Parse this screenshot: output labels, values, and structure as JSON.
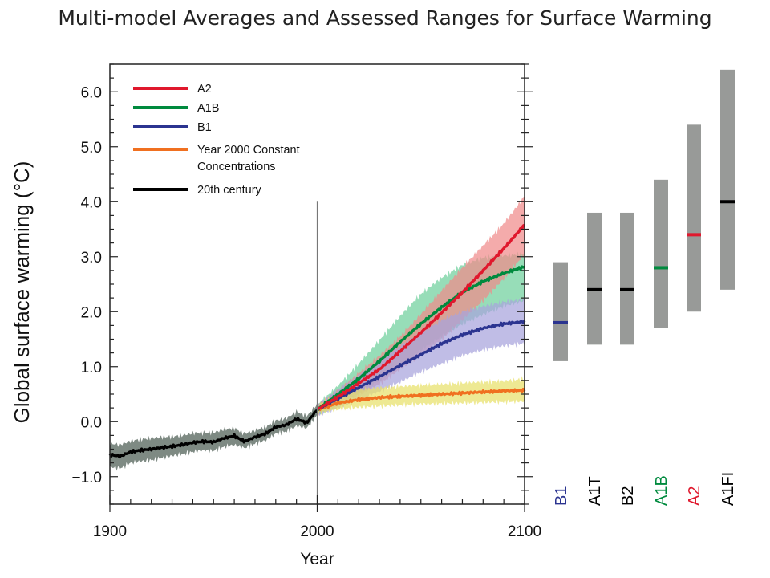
{
  "chart_data": {
    "type": "line",
    "title": "Multi-model Averages and Assessed Ranges for Surface Warming",
    "xlabel": "Year",
    "ylabel": "Global surface warming (°C)",
    "xlim": [
      1900,
      2100
    ],
    "ylim": [
      -1.5,
      6.5
    ],
    "x_ticks": [
      {
        "value": 1900,
        "label": "1900"
      },
      {
        "value": 2000,
        "label": "2000"
      },
      {
        "value": 2100,
        "label": "2100"
      }
    ],
    "y_ticks": [
      {
        "value": -1.0,
        "label": "−1.0"
      },
      {
        "value": 0.0,
        "label": "0.0"
      },
      {
        "value": 1.0,
        "label": "1.0"
      },
      {
        "value": 2.0,
        "label": "2.0"
      },
      {
        "value": 3.0,
        "label": "3.0"
      },
      {
        "value": 4.0,
        "label": "4.0"
      },
      {
        "value": 5.0,
        "label": "5.0"
      },
      {
        "value": 6.0,
        "label": "6.0"
      }
    ],
    "vline_x": 2000,
    "legend_position": "top-left",
    "series": [
      {
        "name": "A2",
        "color": "#e0182d",
        "band_color": "#f08a8a",
        "x": [
          2000,
          2010,
          2020,
          2030,
          2040,
          2050,
          2060,
          2070,
          2080,
          2090,
          2100
        ],
        "y": [
          0.22,
          0.45,
          0.7,
          0.95,
          1.28,
          1.62,
          1.98,
          2.35,
          2.75,
          3.15,
          3.58
        ],
        "lower": [
          0.15,
          0.3,
          0.48,
          0.68,
          0.95,
          1.2,
          1.5,
          1.85,
          2.2,
          2.6,
          3.05
        ],
        "upper": [
          0.3,
          0.58,
          0.88,
          1.2,
          1.55,
          1.95,
          2.38,
          2.8,
          3.2,
          3.6,
          4.1
        ]
      },
      {
        "name": "A1B",
        "color": "#008a3e",
        "band_color": "#6fd09d",
        "x": [
          2000,
          2010,
          2020,
          2030,
          2040,
          2050,
          2060,
          2070,
          2080,
          2090,
          2100
        ],
        "y": [
          0.22,
          0.5,
          0.78,
          1.1,
          1.45,
          1.78,
          2.08,
          2.35,
          2.55,
          2.7,
          2.82
        ],
        "lower": [
          0.12,
          0.3,
          0.52,
          0.75,
          1.02,
          1.3,
          1.55,
          1.78,
          1.95,
          2.1,
          2.2
        ],
        "upper": [
          0.3,
          0.65,
          1.05,
          1.48,
          1.92,
          2.32,
          2.62,
          2.85,
          2.98,
          3.02,
          3.05
        ]
      },
      {
        "name": "B1",
        "color": "#2b3490",
        "band_color": "#a8a4dc",
        "x": [
          2000,
          2010,
          2020,
          2030,
          2040,
          2050,
          2060,
          2070,
          2080,
          2090,
          2100
        ],
        "y": [
          0.22,
          0.42,
          0.62,
          0.82,
          1.02,
          1.22,
          1.42,
          1.58,
          1.7,
          1.78,
          1.82
        ],
        "lower": [
          0.12,
          0.25,
          0.4,
          0.55,
          0.72,
          0.9,
          1.05,
          1.2,
          1.3,
          1.38,
          1.42
        ],
        "upper": [
          0.3,
          0.58,
          0.85,
          1.12,
          1.38,
          1.62,
          1.85,
          2.0,
          2.1,
          2.18,
          2.22
        ]
      },
      {
        "name": "Year 2000 Constant Concentrations",
        "color": "#f07020",
        "band_color": "#e8e06a",
        "x": [
          2000,
          2010,
          2020,
          2030,
          2040,
          2050,
          2060,
          2070,
          2080,
          2090,
          2100
        ],
        "y": [
          0.22,
          0.34,
          0.4,
          0.44,
          0.46,
          0.48,
          0.5,
          0.52,
          0.54,
          0.56,
          0.57
        ],
        "lower": [
          0.15,
          0.22,
          0.26,
          0.28,
          0.3,
          0.32,
          0.33,
          0.34,
          0.35,
          0.36,
          0.37
        ],
        "upper": [
          0.3,
          0.5,
          0.58,
          0.62,
          0.64,
          0.66,
          0.68,
          0.7,
          0.72,
          0.74,
          0.78
        ]
      },
      {
        "name": "20th century",
        "color": "#000000",
        "band_color": "#7e8a83",
        "x": [
          1900,
          1905,
          1910,
          1915,
          1920,
          1925,
          1930,
          1935,
          1940,
          1945,
          1950,
          1955,
          1960,
          1965,
          1970,
          1975,
          1980,
          1985,
          1990,
          1995,
          2000
        ],
        "y": [
          -0.6,
          -0.63,
          -0.55,
          -0.52,
          -0.5,
          -0.47,
          -0.45,
          -0.42,
          -0.38,
          -0.36,
          -0.37,
          -0.3,
          -0.26,
          -0.36,
          -0.28,
          -0.22,
          -0.1,
          -0.06,
          0.05,
          -0.02,
          0.22
        ],
        "lower": [
          -0.82,
          -0.85,
          -0.75,
          -0.72,
          -0.7,
          -0.66,
          -0.62,
          -0.59,
          -0.55,
          -0.52,
          -0.53,
          -0.46,
          -0.42,
          -0.48,
          -0.4,
          -0.34,
          -0.22,
          -0.18,
          -0.08,
          -0.12,
          0.12
        ],
        "upper": [
          -0.4,
          -0.42,
          -0.35,
          -0.32,
          -0.3,
          -0.28,
          -0.27,
          -0.25,
          -0.21,
          -0.2,
          -0.2,
          -0.14,
          -0.12,
          -0.22,
          -0.16,
          -0.1,
          0.02,
          0.06,
          0.18,
          0.1,
          0.32
        ]
      }
    ],
    "ranges": [
      {
        "name": "B1",
        "low": 1.1,
        "high": 2.9,
        "best": 1.8,
        "color": "#2b3490"
      },
      {
        "name": "A1T",
        "low": 1.4,
        "high": 3.8,
        "best": 2.4,
        "color": "#000000"
      },
      {
        "name": "B2",
        "low": 1.4,
        "high": 3.8,
        "best": 2.4,
        "color": "#000000"
      },
      {
        "name": "A1B",
        "low": 1.7,
        "high": 4.4,
        "best": 2.8,
        "color": "#008a3e"
      },
      {
        "name": "A2",
        "low": 2.0,
        "high": 5.4,
        "best": 3.4,
        "color": "#e0182d"
      },
      {
        "name": "A1FI",
        "low": 2.4,
        "high": 6.4,
        "best": 4.0,
        "color": "#000000"
      }
    ],
    "range_bar_color": "#989a98"
  }
}
